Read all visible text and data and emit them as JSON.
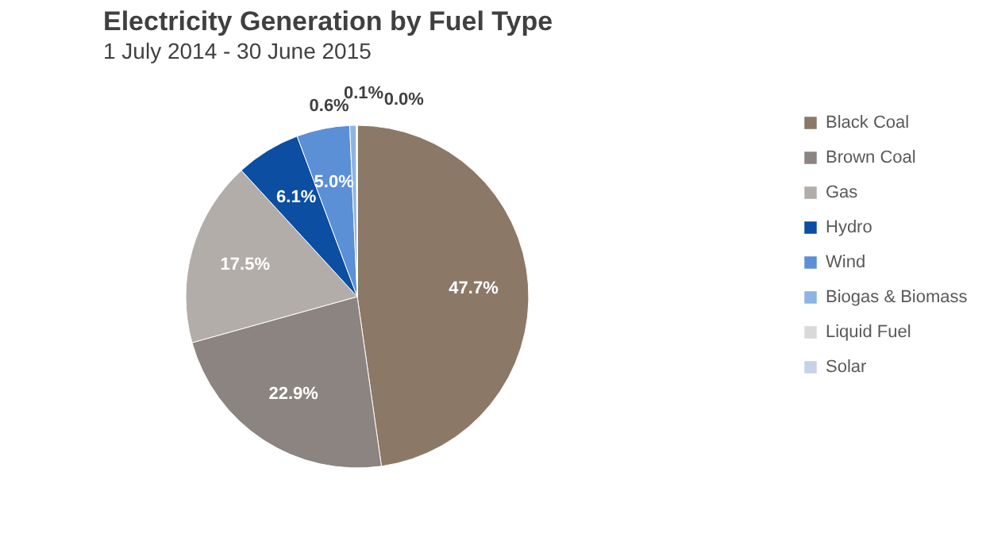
{
  "chart_data": {
    "type": "pie",
    "title": "Electricity Generation by Fuel Type",
    "subtitle": "1 July 2014 - 30 June 2015",
    "categories": [
      "Black Coal",
      "Brown Coal",
      "Gas",
      "Hydro",
      "Wind",
      "Biogas & Biomass",
      "Liquid Fuel",
      "Solar"
    ],
    "values": [
      47.7,
      22.9,
      17.5,
      6.1,
      5.0,
      0.6,
      0.1,
      0.0
    ],
    "colors": [
      "#8b7866",
      "#8c8480",
      "#b3adaa",
      "#0b4ea2",
      "#5b8fd6",
      "#8db4e2",
      "#d9d9d9",
      "#c5d3e8"
    ],
    "value_labels": [
      "47.7%",
      "22.9%",
      "17.5%",
      "6.1%",
      "5.0%",
      "0.6%",
      "0.1%",
      "0.0%"
    ],
    "legend": "right"
  }
}
